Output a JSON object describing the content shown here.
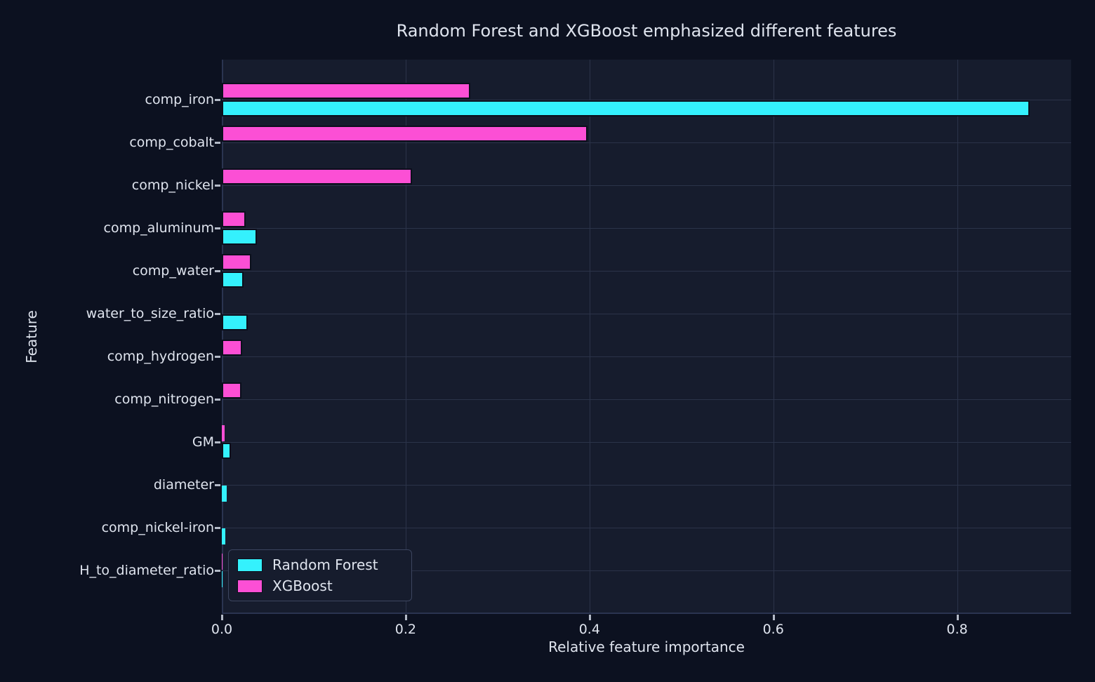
{
  "colors": {
    "figure_bg": "#0c1120",
    "axes_bg": "#161c2d",
    "grid": "#2b3349",
    "spine": "#2a3450",
    "tick_mark": "#b3bac7",
    "text": "#dfe4ee",
    "bar_edge": "#0b0f1c",
    "legend_border": "#3c455f",
    "random_forest": "#34f1fd",
    "xgboost": "#fc4fd5"
  },
  "chart_data": {
    "type": "bar",
    "orientation": "horizontal",
    "grouped": true,
    "title": "Random Forest and XGBoost emphasized different features",
    "xlabel": "Relative feature importance",
    "ylabel": "Feature",
    "categories": [
      "comp_iron",
      "comp_cobalt",
      "comp_nickel",
      "comp_aluminum",
      "comp_water",
      "water_to_size_ratio",
      "comp_hydrogen",
      "comp_nitrogen",
      "GM",
      "diameter",
      "comp_nickel-iron",
      "H_to_diameter_ratio"
    ],
    "series": [
      {
        "name": "Random Forest",
        "color": "#34f1fd",
        "row": "bottom",
        "values": [
          0.879,
          0,
          0,
          0.038,
          0.024,
          0.028,
          0,
          0,
          0.01,
          0.005,
          0.004,
          0.001
        ]
      },
      {
        "name": "XGBoost",
        "color": "#fc4fd5",
        "row": "top",
        "values": [
          0.27,
          0.398,
          0.207,
          0.026,
          0.032,
          0,
          0.022,
          0.021,
          0.003,
          0,
          0,
          0.0005
        ]
      }
    ],
    "x_ticks": {
      "values": [
        0.0,
        0.2,
        0.4,
        0.6,
        0.8
      ],
      "labels": [
        "0.0",
        "0.2",
        "0.4",
        "0.6",
        "0.8"
      ]
    },
    "xlim": [
      0,
      0.924
    ],
    "grid": true,
    "legend_position": "lower left"
  }
}
